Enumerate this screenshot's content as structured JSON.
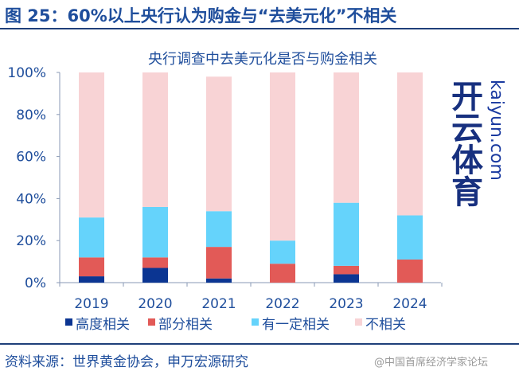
{
  "header": {
    "title": "图 25：60%以上央行认为购金与“去美元化”不相关"
  },
  "footer": {
    "source": "资料来源：世界黄金协会，申万宏源研究"
  },
  "watermark": {
    "brand": "开云体育",
    "url": "kaiyun.com",
    "handle": "@中国首席经济学家论坛"
  },
  "chart_data": {
    "type": "bar",
    "stacked": true,
    "title": "央行调查中去美元化是否与购金相关",
    "xlabel": "",
    "ylabel": "",
    "ylim": [
      0,
      100
    ],
    "yticks": [
      "0%",
      "20%",
      "40%",
      "60%",
      "80%",
      "100%"
    ],
    "categories": [
      "2019",
      "2020",
      "2021",
      "2022",
      "2023",
      "2024"
    ],
    "series": [
      {
        "name": "高度相关",
        "color": "#0b3592",
        "values": [
          3,
          7,
          2,
          0,
          4,
          0
        ]
      },
      {
        "name": "部分相关",
        "color": "#e25a57",
        "values": [
          9,
          5,
          15,
          9,
          4,
          11
        ]
      },
      {
        "name": "有一定相关",
        "color": "#65d3fb",
        "values": [
          19,
          24,
          17,
          11,
          30,
          21
        ]
      },
      {
        "name": "不相关",
        "color": "#f8d3d5",
        "values": [
          69,
          64,
          64,
          80,
          62,
          68
        ]
      }
    ],
    "legend": "bottom"
  }
}
